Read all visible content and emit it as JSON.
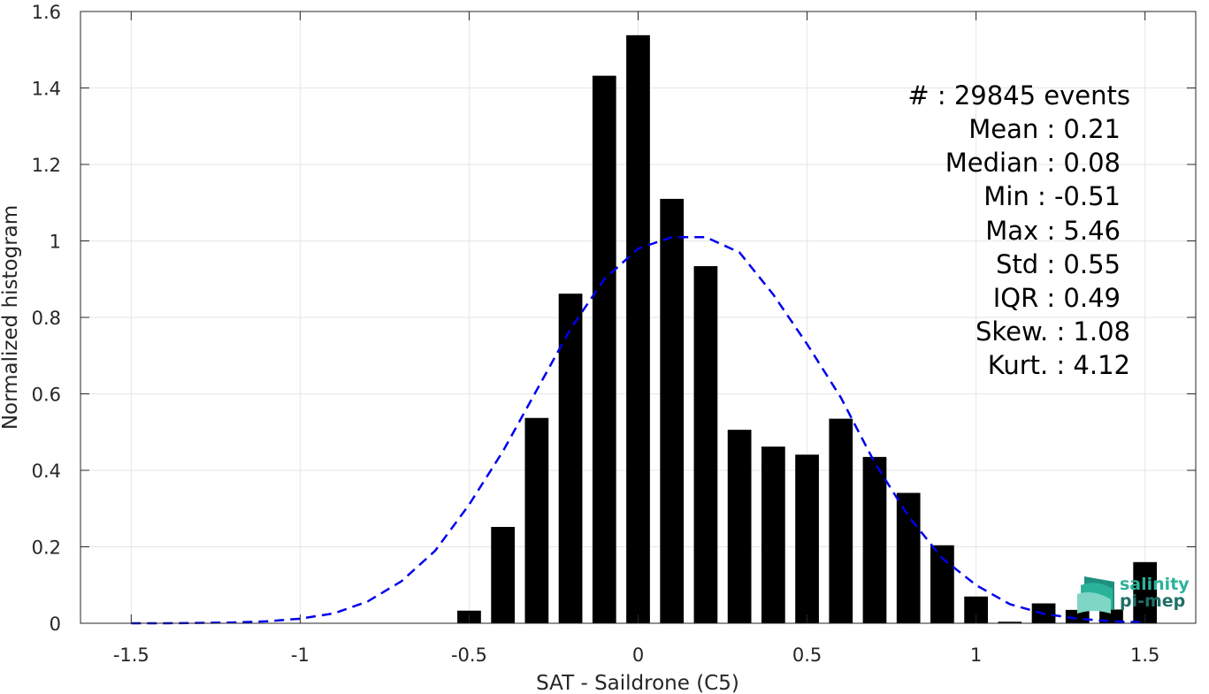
{
  "chart_data": {
    "type": "bar",
    "xlabel": "SAT - Saildrone (C5)",
    "ylabel": "Normalized histogram",
    "xlim": [
      -1.65,
      1.65
    ],
    "ylim": [
      0,
      1.6
    ],
    "grid": true,
    "x_ticks": [
      -1.5,
      -1,
      -0.5,
      0,
      0.5,
      1,
      1.5
    ],
    "x_tick_labels": [
      "-1.5",
      "-1",
      "-0.5",
      "0",
      "0.5",
      "1",
      "1.5"
    ],
    "y_ticks": [
      0,
      0.2,
      0.4,
      0.6,
      0.8,
      1,
      1.2,
      1.4,
      1.6
    ],
    "y_tick_labels": [
      "0",
      "0.2",
      "0.4",
      "0.6",
      "0.8",
      "1",
      "1.2",
      "1.4",
      "1.6"
    ],
    "bar_color": "#000000",
    "bars": {
      "x": [
        -0.5,
        -0.4,
        -0.3,
        -0.2,
        -0.1,
        0.0,
        0.1,
        0.2,
        0.3,
        0.4,
        0.5,
        0.6,
        0.7,
        0.8,
        0.9,
        1.0,
        1.1,
        1.2,
        1.3,
        1.4,
        1.5
      ],
      "values": [
        0.033,
        0.252,
        0.537,
        0.862,
        1.432,
        1.538,
        1.11,
        0.934,
        0.506,
        0.462,
        0.441,
        0.535,
        0.435,
        0.341,
        0.204,
        0.07,
        0.004,
        0.052,
        0.035,
        0.036,
        0.16
      ]
    },
    "fit": {
      "style": "dashed",
      "color": "#0000ee",
      "x": [
        -1.5,
        -1.4,
        -1.3,
        -1.2,
        -1.1,
        -1.0,
        -0.9,
        -0.8,
        -0.7,
        -0.6,
        -0.5,
        -0.4,
        -0.3,
        -0.2,
        -0.1,
        0.0,
        0.1,
        0.2,
        0.3,
        0.4,
        0.5,
        0.6,
        0.7,
        0.8,
        0.9,
        1.0,
        1.1,
        1.2,
        1.3,
        1.4,
        1.5
      ],
      "y": [
        0.0,
        0.0,
        0.001,
        0.002,
        0.005,
        0.012,
        0.026,
        0.057,
        0.11,
        0.19,
        0.31,
        0.45,
        0.61,
        0.77,
        0.9,
        0.98,
        1.01,
        1.01,
        0.97,
        0.86,
        0.73,
        0.59,
        0.42,
        0.28,
        0.17,
        0.1,
        0.05,
        0.025,
        0.012,
        0.005,
        0.002
      ]
    }
  },
  "stats": [
    "#  : 29845 events",
    "Mean : 0.21",
    "Median : 0.08",
    "Min : -0.51",
    "Max : 5.46",
    "Std : 0.55",
    "IQR : 0.49",
    "Skew. : 1.08",
    "Kurt. : 4.12"
  ],
  "logo": {
    "line1": "salinity",
    "line2": "pi-mep",
    "color1": "#2bb39a",
    "color2": "#1f6f66"
  }
}
